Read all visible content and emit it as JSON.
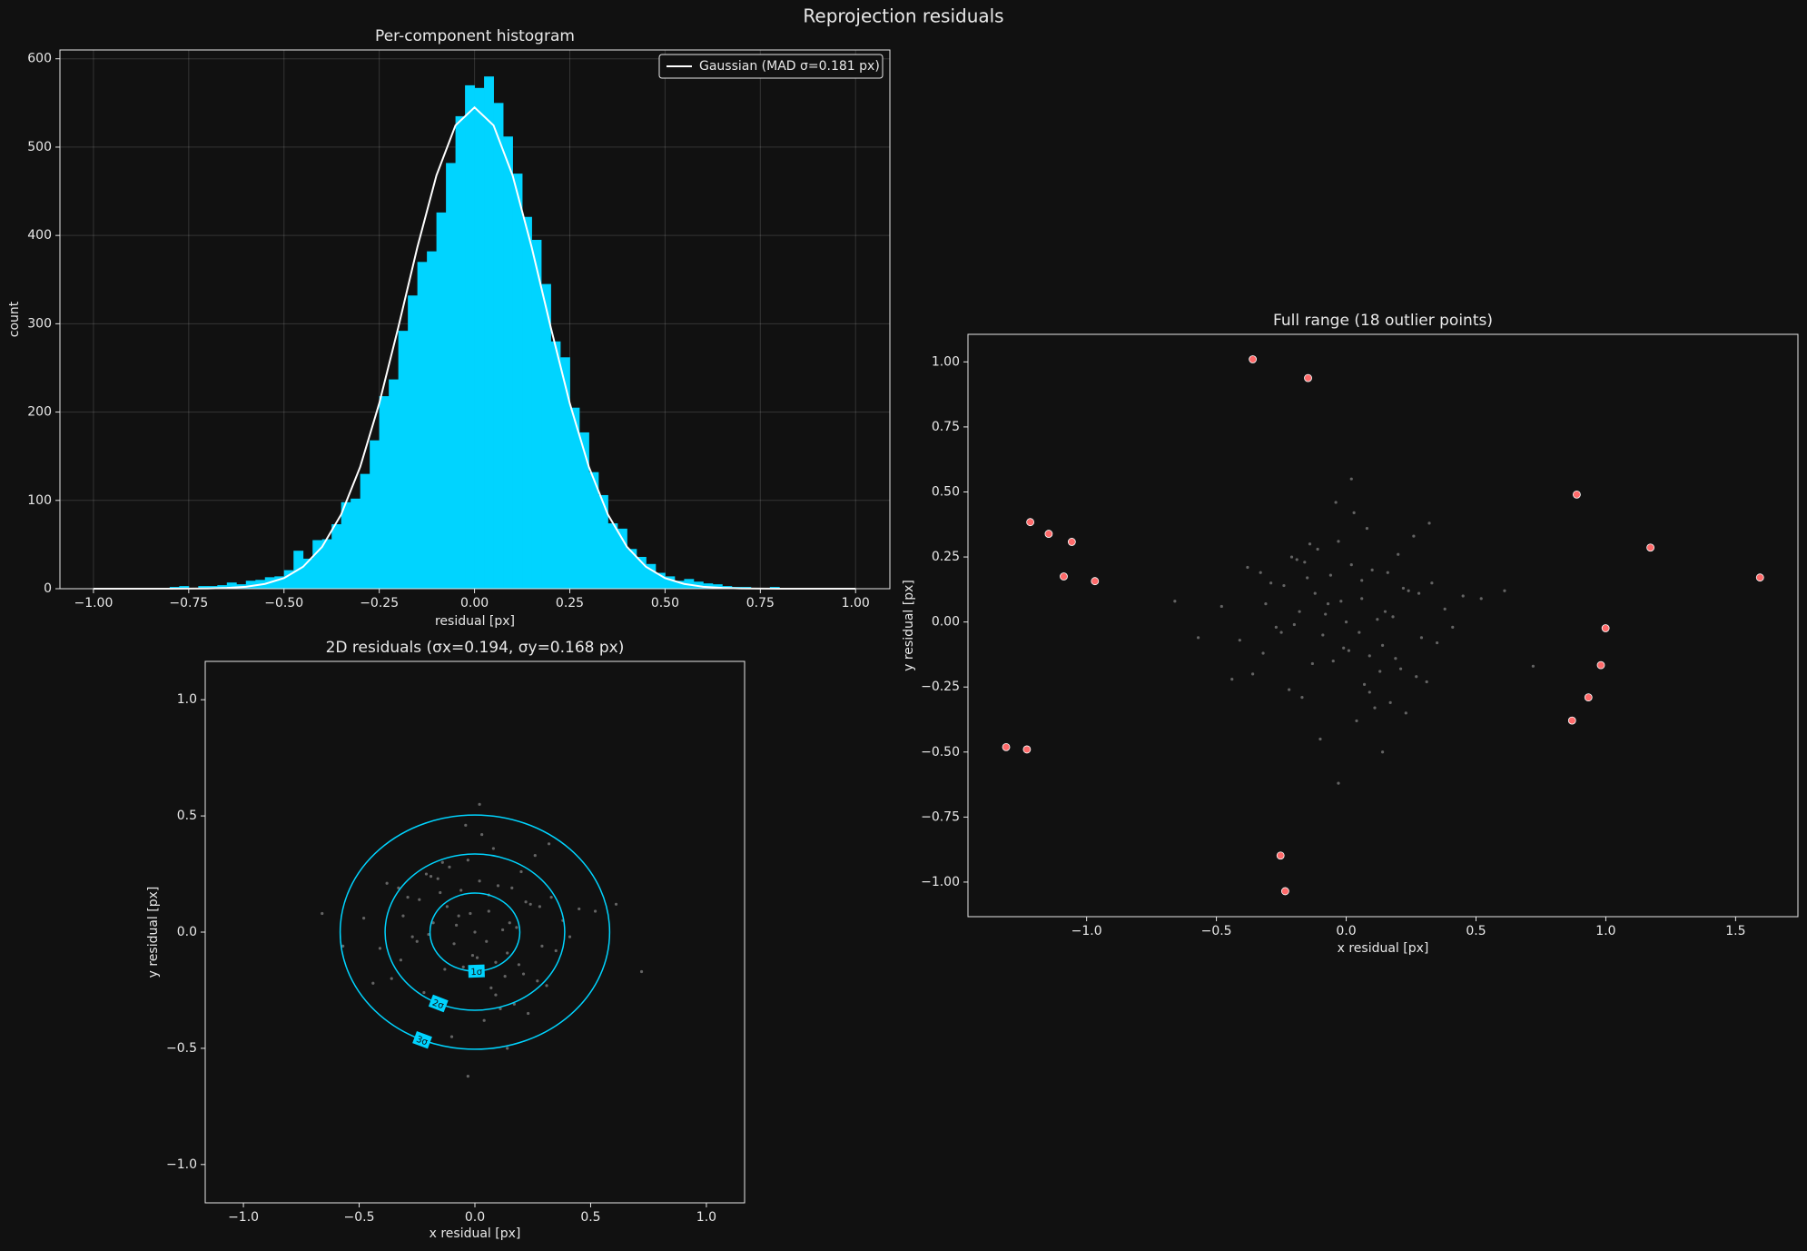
{
  "title": "Reprojection residuals",
  "chart_data": [
    {
      "type": "histogram",
      "title": "Per-component histogram",
      "xlabel": "residual [px]",
      "ylabel": "count",
      "bins": [
        -0.8,
        -0.775,
        -0.75,
        -0.725,
        -0.7,
        -0.675,
        -0.65,
        -0.625,
        -0.6,
        -0.575,
        -0.55,
        -0.525,
        -0.5,
        -0.475,
        -0.45,
        -0.425,
        -0.4,
        -0.375,
        -0.35,
        -0.325,
        -0.3,
        -0.275,
        -0.25,
        -0.225,
        -0.2,
        -0.175,
        -0.15,
        -0.125,
        -0.1,
        -0.075,
        -0.05,
        -0.025,
        0,
        0.025,
        0.05,
        0.075,
        0.1,
        0.125,
        0.15,
        0.175,
        0.2,
        0.225,
        0.25,
        0.275,
        0.3,
        0.325,
        0.35,
        0.375,
        0.4,
        0.425,
        0.45,
        0.475,
        0.5,
        0.525,
        0.55,
        0.575,
        0.6,
        0.625,
        0.65,
        0.675,
        0.7,
        0.725,
        0.75,
        0.775,
        0.8,
        0.825,
        0.85
      ],
      "values": [
        2,
        3,
        1,
        3,
        3,
        4,
        7,
        5,
        9,
        10,
        13,
        14,
        21,
        43,
        34,
        55,
        56,
        73,
        98,
        102,
        130,
        168,
        218,
        237,
        292,
        332,
        370,
        382,
        426,
        482,
        535,
        570,
        567,
        580,
        550,
        512,
        470,
        421,
        395,
        345,
        280,
        262,
        205,
        177,
        132,
        106,
        74,
        68,
        45,
        36,
        28,
        18,
        14,
        9,
        11,
        8,
        6,
        5,
        3,
        2,
        2,
        1,
        0,
        2,
        1,
        1
      ],
      "color": "#00d4ff",
      "lines": [
        {
          "name": "Gaussian (MAD σ=0.181 px)",
          "color": "#ffffff",
          "x": [
            -1,
            -0.95,
            -0.9,
            -0.85,
            -0.8,
            -0.75,
            -0.7,
            -0.65,
            -0.6,
            -0.55,
            -0.5,
            -0.45,
            -0.4,
            -0.35,
            -0.3,
            -0.25,
            -0.2,
            -0.15,
            -0.1,
            -0.05,
            0,
            0.05,
            0.1,
            0.15,
            0.2,
            0.25,
            0.3,
            0.35,
            0.4,
            0.45,
            0.5,
            0.55,
            0.6,
            0.65,
            0.7,
            0.75,
            0.8,
            0.85,
            0.9,
            0.95,
            1
          ],
          "values": [
            0,
            0,
            0,
            0,
            0,
            0.1,
            0.3,
            0.9,
            2.2,
            5.4,
            12,
            24.8,
            47.4,
            84,
            138,
            209.9,
            296,
            386.6,
            467.9,
            524.6,
            545,
            524.6,
            467.9,
            386.6,
            296,
            209.9,
            138,
            84,
            47.4,
            24.8,
            12,
            5.4,
            2.2,
            0.9,
            0.3,
            0.1,
            0,
            0,
            0,
            0,
            0
          ]
        }
      ],
      "legend": "upper right",
      "grid": true,
      "xlim": [
        -1.088,
        1.09
      ],
      "ylim": [
        0,
        610
      ],
      "xticks": [
        {
          "value": -1,
          "label": "−1.00"
        },
        {
          "value": -0.75,
          "label": "−0.75"
        },
        {
          "value": -0.5,
          "label": "−0.50"
        },
        {
          "value": -0.25,
          "label": "−0.25"
        },
        {
          "value": 0,
          "label": "0.00"
        },
        0.25,
        {
          "value": 0.5,
          "label": "0.50"
        },
        0.75,
        {
          "value": 1,
          "label": "1.00"
        }
      ],
      "yticks": [
        0,
        100,
        200,
        300,
        400,
        500,
        600
      ]
    },
    {
      "type": "scatter",
      "title": "2D residuals (σx=0.194, σy=0.168 px)",
      "xlabel": "x residual [px]",
      "ylabel": "y residual [px]",
      "points": {
        "color": "#ffffff",
        "alpha": 0.35,
        "x": [
          0.05,
          -0.12,
          0.21,
          -0.31,
          0.02,
          0.14,
          -0.08,
          0.33,
          -0.22,
          0.09,
          -0.03,
          0.18,
          -0.41,
          0.27,
          -0.15,
          0.06,
          0.11,
          -0.19,
          0.38,
          -0.05,
          0.24,
          -0.27,
          0.01,
          -0.11,
          0.16,
          -0.36,
          0.08,
          0.29,
          -0.02,
          -0.17,
          0.12,
          0.45,
          -0.24,
          0.04,
          -0.09,
          0.2,
          -0.32,
          0.15,
          -0.06,
          0.31,
          -0.13,
          0.03,
          -0.48,
          0.22,
          0.07,
          -0.2,
          0.1,
          -0.01,
          0.26,
          -0.29,
          0.17,
          -0.07,
          0.35,
          -0.16,
          0,
          0.13,
          -0.25,
          0.52,
          -0.04,
          0.19,
          -0.38,
          0.09,
          -0.14,
          0.28,
          -0.1,
          0.06,
          -0.57,
          0.23,
          -0.21,
          0.41,
          0.02,
          -0.33,
          0.14,
          -0.18,
          0.61,
          -0.44,
          0.32,
          -0.66,
          0.72,
          -0.03
        ],
        "y": [
          -0.04,
          0.11,
          -0.18,
          0.07,
          0.22,
          -0.09,
          0.03,
          0.15,
          -0.26,
          -0.13,
          0.31,
          0.02,
          -0.07,
          -0.21,
          0.17,
          0.09,
          -0.33,
          0.24,
          0.05,
          -0.15,
          0.12,
          -0.02,
          -0.11,
          0.28,
          0.19,
          -0.2,
          0.36,
          -0.06,
          0.08,
          -0.29,
          0.01,
          0.1,
          0.14,
          -0.38,
          -0.05,
          0.26,
          -0.12,
          0.04,
          0.18,
          -0.23,
          -0.16,
          0.42,
          0.06,
          0.13,
          -0.24,
          -0.01,
          0.2,
          -0.1,
          0.33,
          0.15,
          -0.31,
          0.07,
          -0.08,
          0.23,
          0,
          -0.19,
          -0.04,
          0.09,
          0.46,
          -0.14,
          0.21,
          -0.27,
          0.3,
          0.11,
          -0.45,
          0.16,
          -0.06,
          -0.35,
          0.25,
          -0.02,
          0.55,
          0.19,
          -0.5,
          0.04,
          0.12,
          -0.22,
          0.38,
          0.08,
          -0.17,
          -0.62
        ]
      },
      "contours": [
        {
          "label": "1σ",
          "rx": 0.194,
          "ry": 0.168
        },
        {
          "label": "2σ",
          "rx": 0.388,
          "ry": 0.336
        },
        {
          "label": "3σ",
          "rx": 0.582,
          "ry": 0.504
        }
      ],
      "contour_color": "#00d4ff",
      "grid": false,
      "xlim": [
        -1.165,
        1.165
      ],
      "ylim": [
        -1.165,
        1.165
      ],
      "xticks": [
        {
          "value": -1,
          "label": "−1.0"
        },
        {
          "value": -0.5,
          "label": "−0.5"
        },
        {
          "value": 0,
          "label": "0.0"
        },
        0.5,
        {
          "value": 1,
          "label": "1.0"
        }
      ],
      "yticks": [
        {
          "value": -1,
          "label": "−1.0"
        },
        {
          "value": -0.5,
          "label": "−0.5"
        },
        {
          "value": 0,
          "label": "0.0"
        },
        0.5,
        {
          "value": 1,
          "label": "1.0"
        }
      ]
    },
    {
      "type": "scatter",
      "title": "Full range (18 outlier points)",
      "xlabel": "x residual [px]",
      "ylabel": "y residual [px]",
      "points": {
        "color": "#ffffff",
        "alpha": 0.35,
        "x": [
          0.05,
          -0.12,
          0.21,
          -0.31,
          0.02,
          0.14,
          -0.08,
          0.33,
          -0.22,
          0.09,
          -0.03,
          0.18,
          -0.41,
          0.27,
          -0.15,
          0.06,
          0.11,
          -0.19,
          0.38,
          -0.05,
          0.24,
          -0.27,
          0.01,
          -0.11,
          0.16,
          -0.36,
          0.08,
          0.29,
          -0.02,
          -0.17,
          0.12,
          0.45,
          -0.24,
          0.04,
          -0.09,
          0.2,
          -0.32,
          0.15,
          -0.06,
          0.31,
          -0.13,
          0.03,
          -0.48,
          0.22,
          0.07,
          -0.2,
          0.1,
          -0.01,
          0.26,
          -0.29,
          0.17,
          -0.07,
          0.35,
          -0.16,
          0,
          0.13,
          -0.25,
          0.52,
          -0.04,
          0.19,
          -0.38,
          0.09,
          -0.14,
          0.28,
          -0.1,
          0.06,
          -0.57,
          0.23,
          -0.21,
          0.41,
          0.02,
          -0.33,
          0.14,
          -0.18,
          0.61,
          -0.44,
          0.32,
          -0.66,
          0.72,
          -0.03
        ],
        "y": [
          -0.04,
          0.11,
          -0.18,
          0.07,
          0.22,
          -0.09,
          0.03,
          0.15,
          -0.26,
          -0.13,
          0.31,
          0.02,
          -0.07,
          -0.21,
          0.17,
          0.09,
          -0.33,
          0.24,
          0.05,
          -0.15,
          0.12,
          -0.02,
          -0.11,
          0.28,
          0.19,
          -0.2,
          0.36,
          -0.06,
          0.08,
          -0.29,
          0.01,
          0.1,
          0.14,
          -0.38,
          -0.05,
          0.26,
          -0.12,
          0.04,
          0.18,
          -0.23,
          -0.16,
          0.42,
          0.06,
          0.13,
          -0.24,
          -0.01,
          0.2,
          -0.1,
          0.33,
          0.15,
          -0.31,
          0.07,
          -0.08,
          0.23,
          0,
          -0.19,
          -0.04,
          0.09,
          0.46,
          -0.14,
          0.21,
          -0.27,
          0.3,
          0.11,
          -0.45,
          0.16,
          -0.06,
          -0.35,
          0.25,
          -0.02,
          0.55,
          0.19,
          -0.5,
          0.04,
          0.12,
          -0.22,
          0.38,
          0.08,
          -0.17,
          -0.62
        ]
      },
      "outliers": {
        "color": "#ff6b6b",
        "x": [
          -0.36,
          -0.147,
          -1.217,
          -1.146,
          -1.057,
          -1.088,
          -0.968,
          -1.31,
          -1.23,
          -0.253,
          -0.235,
          0.888,
          1.172,
          1.594,
          0.999,
          0.981,
          0.933,
          0.87
        ],
        "y": [
          1.01,
          0.938,
          0.384,
          0.339,
          0.308,
          0.175,
          0.157,
          -0.481,
          -0.49,
          -0.898,
          -1.035,
          0.49,
          0.286,
          0.171,
          -0.024,
          -0.166,
          -0.29,
          -0.379
        ]
      },
      "grid": false,
      "xlim": [
        -1.457,
        1.74
      ],
      "ylim": [
        -1.133,
        1.106
      ],
      "xticks": [
        {
          "value": -1,
          "label": "−1.0"
        },
        {
          "value": -0.5,
          "label": "−0.5"
        },
        {
          "value": 0,
          "label": "0.0"
        },
        0.5,
        {
          "value": 1,
          "label": "1.0"
        },
        1.5
      ],
      "yticks": [
        {
          "value": -1,
          "label": "−1.00"
        },
        {
          "value": -0.75,
          "label": "−0.75"
        },
        {
          "value": -0.5,
          "label": "−0.50"
        },
        {
          "value": -0.25,
          "label": "−0.25"
        },
        {
          "value": 0,
          "label": "0.00"
        },
        0.25,
        {
          "value": 0.5,
          "label": "0.50"
        },
        0.75,
        {
          "value": 1,
          "label": "1.00"
        }
      ]
    }
  ]
}
